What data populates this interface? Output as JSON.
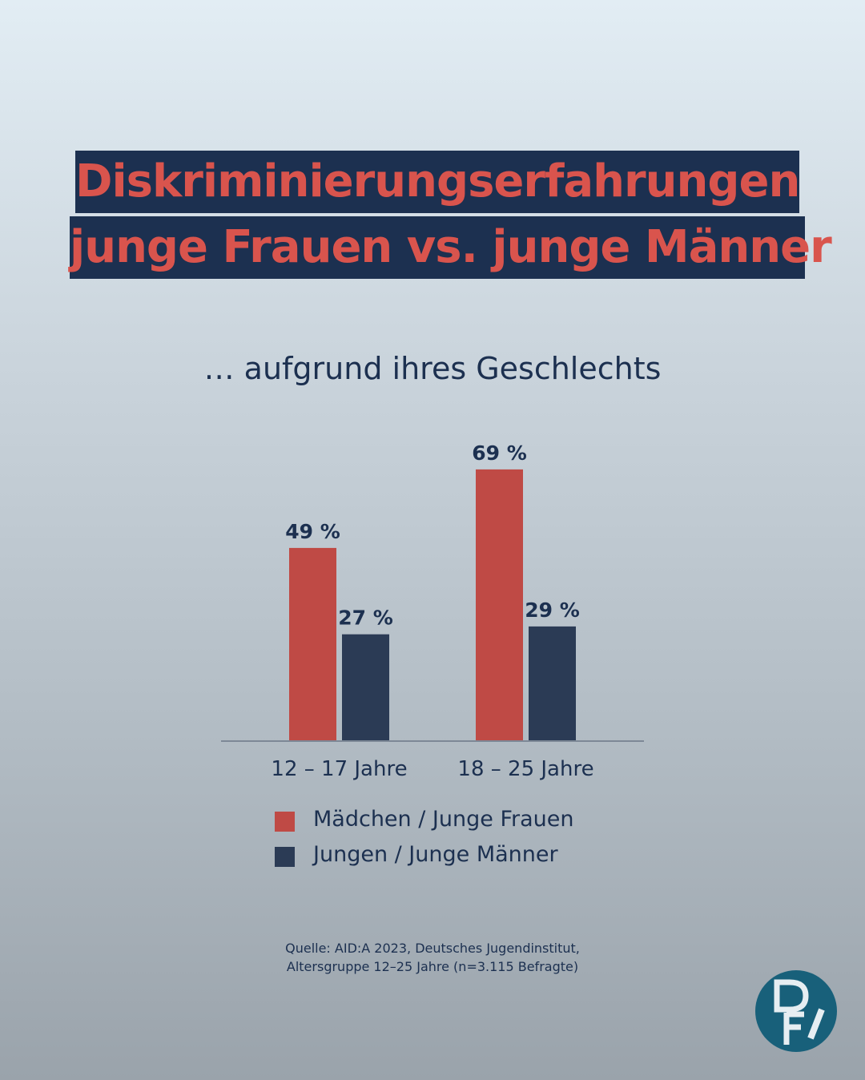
{
  "title": {
    "line1": "Diskriminierungserfahrungen",
    "line2": "junge Frauen vs. junge Männer"
  },
  "subtitle": "… aufgrund ihres Geschlechts",
  "chart_data": {
    "type": "bar",
    "categories": [
      "12 – 17 Jahre",
      "18 – 25 Jahre"
    ],
    "series": [
      {
        "name": "Mädchen / Junge Frauen",
        "values": [
          49,
          69
        ],
        "labels": [
          "49 %",
          "69 %"
        ],
        "color": "#bf4a45"
      },
      {
        "name": "Jungen / Junge Männer",
        "values": [
          27,
          29
        ],
        "labels": [
          "27 %",
          "29 %"
        ],
        "color": "#2b3b55"
      }
    ],
    "ylim": [
      0,
      100
    ],
    "grid": false,
    "legend_position": "bottom"
  },
  "legend": [
    {
      "label": "Mädchen / Junge Frauen",
      "color": "#bf4a45"
    },
    {
      "label": "Jungen / Junge Männer",
      "color": "#2b3b55"
    }
  ],
  "source": {
    "line1": "Quelle:  AID:A 2023, Deutsches Jugendinstitut,",
    "line2": "Altersgruppe 12–25 Jahre (n=3.115 Befragte)"
  },
  "logo": {
    "icon": "dfi-logo-icon",
    "color": "#18607a"
  }
}
